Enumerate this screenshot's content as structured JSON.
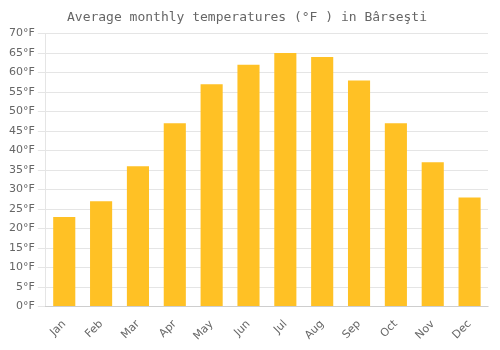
{
  "chart_data": {
    "type": "bar",
    "title": "Average monthly temperatures (°F ) in Bârseşti",
    "categories": [
      "Jan",
      "Feb",
      "Mar",
      "Apr",
      "May",
      "Jun",
      "Jul",
      "Aug",
      "Sep",
      "Oct",
      "Nov",
      "Dec"
    ],
    "values": [
      23,
      27,
      36,
      47,
      57,
      62,
      65,
      64,
      58,
      47,
      37,
      28
    ],
    "color": "#FFC125",
    "ylim": [
      0,
      70
    ],
    "yticks": [
      {
        "value": 0,
        "label": "0°F"
      },
      {
        "value": 5,
        "label": "5°F"
      },
      {
        "value": 10,
        "label": "10°F"
      },
      {
        "value": 15,
        "label": "15°F"
      },
      {
        "value": 20,
        "label": "20°F"
      },
      {
        "value": 25,
        "label": "25°F"
      },
      {
        "value": 30,
        "label": "30°F"
      },
      {
        "value": 35,
        "label": "35°F"
      },
      {
        "value": 40,
        "label": "40°F"
      },
      {
        "value": 45,
        "label": "45°F"
      },
      {
        "value": 50,
        "label": "50°F"
      },
      {
        "value": 55,
        "label": "55°F"
      },
      {
        "value": 60,
        "label": "60°F"
      },
      {
        "value": 65,
        "label": "65°F"
      },
      {
        "value": 70,
        "label": "70°F"
      }
    ],
    "grid": true
  }
}
